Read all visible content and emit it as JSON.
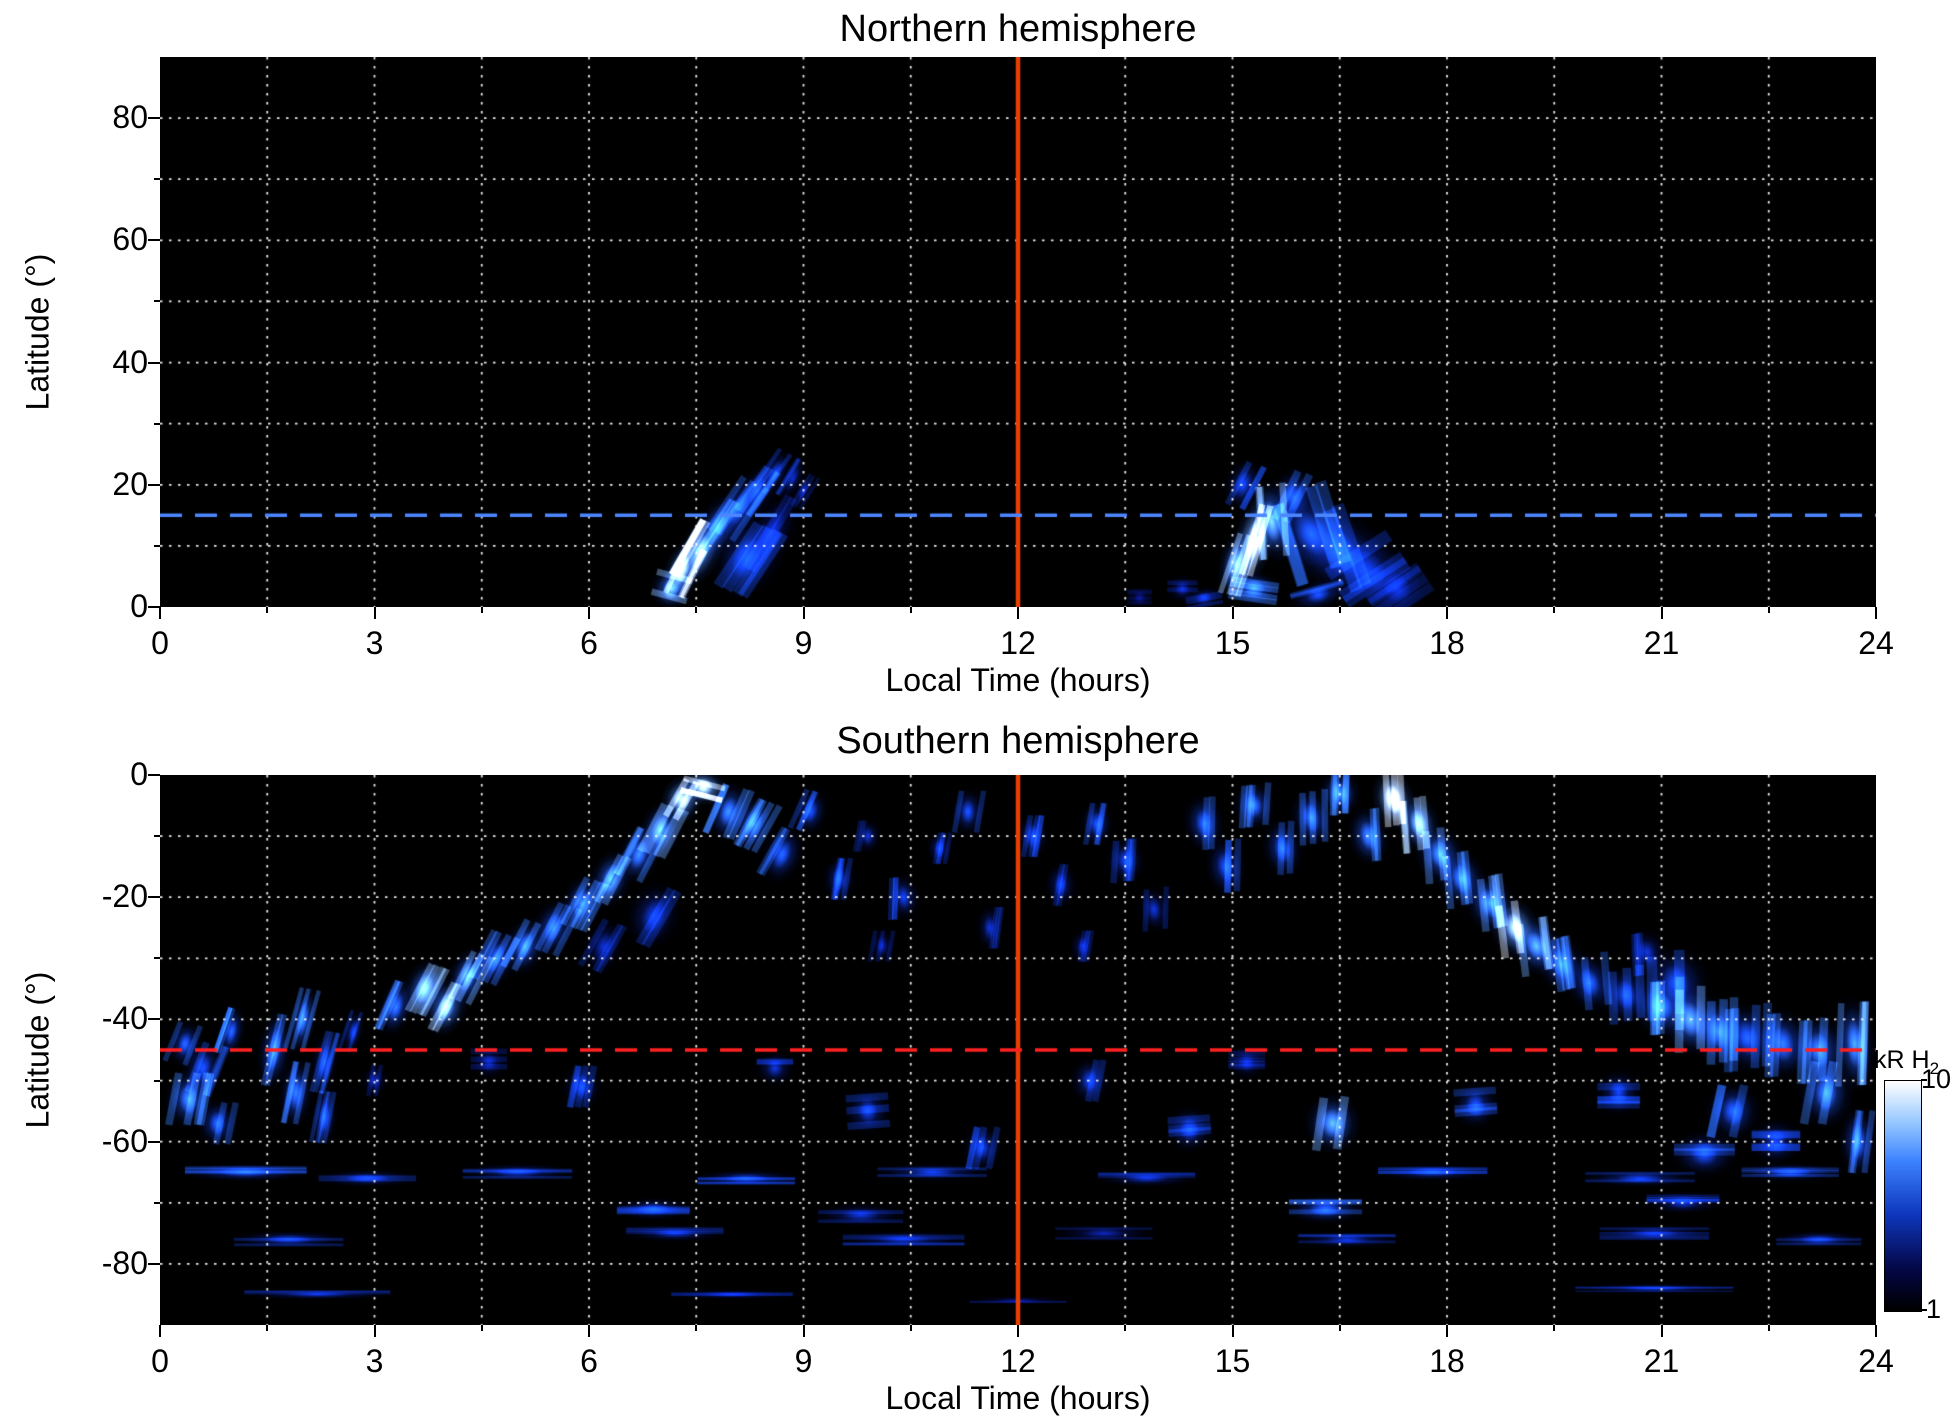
{
  "page": {
    "background": "#ffffff"
  },
  "colorbar": {
    "label_main": "kR H",
    "label_sub": "2",
    "tick_top": "10",
    "tick_bottom": "1",
    "scale": "log",
    "range": [
      1,
      10
    ]
  },
  "chart_data": [
    {
      "id": "north",
      "type": "heatmap",
      "title": "Northern hemisphere",
      "xlabel": "Local Time (hours)",
      "ylabel": "Latitude (°)",
      "xlim": [
        0,
        24
      ],
      "ylim": [
        0,
        90
      ],
      "xticks": [
        0,
        3,
        6,
        9,
        12,
        15,
        18,
        21,
        24
      ],
      "yticks": [
        0,
        20,
        40,
        60,
        80
      ],
      "x_grid_step": 1.5,
      "y_grid_step": 10,
      "grid_color": "#ffffff",
      "grid_style": "dotted",
      "bg_color": "#000000",
      "noon_line": {
        "x": 12,
        "color": "#e84000"
      },
      "ref_line": {
        "y": 15,
        "color": "#4d86ff",
        "style": "dashed"
      },
      "value_units": "kR H2",
      "value_range": [
        1,
        10
      ],
      "value_scale": "log",
      "features_format": [
        "x_hours",
        "y_lat_deg",
        "halfwidth_hours",
        "halfheight_deg",
        "tilt_deg",
        "intensity_0to1"
      ],
      "features": [
        [
          7.15,
          3,
          0.3,
          3.5,
          15,
          0.75
        ],
        [
          7.3,
          6,
          0.25,
          5,
          18,
          0.95
        ],
        [
          7.55,
          9,
          0.3,
          6,
          22,
          0.85
        ],
        [
          7.8,
          13,
          0.3,
          6,
          25,
          0.6
        ],
        [
          8.1,
          16,
          0.3,
          6,
          26,
          0.5
        ],
        [
          8.35,
          19,
          0.25,
          5,
          27,
          0.45
        ],
        [
          8.6,
          22,
          0.2,
          4.5,
          28,
          0.4
        ],
        [
          8.85,
          21,
          0.16,
          4,
          25,
          0.33
        ],
        [
          8.2,
          8,
          0.5,
          7,
          22,
          0.42
        ],
        [
          8.55,
          12,
          0.35,
          8,
          24,
          0.3
        ],
        [
          9.0,
          19,
          0.14,
          3.5,
          25,
          0.3
        ],
        [
          13.7,
          1.5,
          0.2,
          2,
          0,
          0.22
        ],
        [
          14.3,
          3,
          0.25,
          2.5,
          0,
          0.3
        ],
        [
          14.6,
          1.5,
          0.3,
          2,
          -10,
          0.35
        ],
        [
          15.05,
          7,
          0.25,
          6,
          12,
          0.8
        ],
        [
          15.3,
          11,
          0.28,
          7,
          10,
          0.95
        ],
        [
          15.55,
          14,
          0.3,
          7,
          -10,
          0.75
        ],
        [
          15.3,
          3,
          0.4,
          3,
          8,
          0.6
        ],
        [
          15.85,
          18,
          0.35,
          5,
          15,
          0.5
        ],
        [
          15.15,
          20,
          0.28,
          4.5,
          18,
          0.42
        ],
        [
          16.1,
          12,
          0.55,
          8,
          -28,
          0.5
        ],
        [
          16.5,
          9,
          0.6,
          8,
          -31,
          0.42
        ],
        [
          16.9,
          6,
          0.6,
          7,
          -33,
          0.38
        ],
        [
          17.3,
          3,
          0.5,
          5,
          -34,
          0.32
        ],
        [
          16.2,
          2,
          0.45,
          2.5,
          -15,
          0.45
        ]
      ]
    },
    {
      "id": "south",
      "type": "heatmap",
      "title": "Southern hemisphere",
      "xlabel": "Local Time (hours)",
      "ylabel": "Latitude (°)",
      "xlim": [
        0,
        24
      ],
      "ylim": [
        -90,
        0
      ],
      "xticks": [
        0,
        3,
        6,
        9,
        12,
        15,
        18,
        21,
        24
      ],
      "yticks": [
        0,
        -20,
        -40,
        -60,
        -80
      ],
      "x_grid_step": 1.5,
      "y_grid_step": 10,
      "grid_color": "#ffffff",
      "grid_style": "dotted",
      "bg_color": "#000000",
      "noon_line": {
        "x": 12,
        "color": "#e84000"
      },
      "ref_line": {
        "y": -45,
        "color": "#ff2020",
        "style": "dashed"
      },
      "value_units": "kR H2",
      "value_range": [
        1,
        10
      ],
      "value_scale": "log",
      "features_format": [
        "x_hours",
        "y_lat_deg",
        "halfwidth_hours",
        "halfheight_deg",
        "tilt_deg",
        "intensity_0to1"
      ],
      "features": [
        [
          0.35,
          -44,
          0.25,
          4,
          12,
          0.5
        ],
        [
          0.6,
          -48,
          0.3,
          5,
          12,
          0.45
        ],
        [
          1.0,
          -42,
          0.2,
          4.5,
          12,
          0.5
        ],
        [
          1.6,
          -45,
          0.25,
          7,
          8,
          0.55
        ],
        [
          2.0,
          -40,
          0.2,
          6,
          10,
          0.6
        ],
        [
          2.3,
          -47,
          0.2,
          6,
          10,
          0.45
        ],
        [
          2.7,
          -42,
          0.16,
          4,
          12,
          0.4
        ],
        [
          3.3,
          -38,
          0.25,
          5,
          16,
          0.55
        ],
        [
          3.7,
          -35,
          0.3,
          5,
          18,
          0.75
        ],
        [
          4.0,
          -38,
          0.3,
          5,
          18,
          0.8
        ],
        [
          4.3,
          -33,
          0.28,
          5,
          18,
          0.7
        ],
        [
          4.7,
          -30,
          0.3,
          5,
          18,
          0.55
        ],
        [
          5.1,
          -28,
          0.3,
          5,
          18,
          0.6
        ],
        [
          5.5,
          -25,
          0.3,
          5,
          18,
          0.55
        ],
        [
          5.9,
          -21,
          0.3,
          5,
          18,
          0.6
        ],
        [
          6.3,
          -17,
          0.3,
          5,
          18,
          0.65
        ],
        [
          6.7,
          -13,
          0.3,
          5,
          18,
          0.6
        ],
        [
          7.0,
          -9,
          0.3,
          5,
          18,
          0.7
        ],
        [
          7.3,
          -4,
          0.3,
          4,
          18,
          0.9
        ],
        [
          7.6,
          -2,
          0.35,
          3,
          14,
          0.95
        ],
        [
          7.95,
          -6,
          0.3,
          5,
          14,
          0.6
        ],
        [
          6.9,
          -23,
          0.4,
          6,
          20,
          0.38
        ],
        [
          6.2,
          -28,
          0.3,
          5,
          20,
          0.33
        ],
        [
          8.3,
          -8,
          0.3,
          5,
          20,
          0.6
        ],
        [
          8.7,
          -13,
          0.3,
          5,
          20,
          0.5
        ],
        [
          9.1,
          -6,
          0.25,
          4,
          14,
          0.45
        ],
        [
          9.5,
          -17,
          0.25,
          4,
          0,
          0.4
        ],
        [
          9.9,
          -10,
          0.2,
          3,
          0,
          0.35
        ],
        [
          10.4,
          -20,
          0.25,
          4,
          -8,
          0.4
        ],
        [
          10.9,
          -12,
          0.2,
          3,
          0,
          0.35
        ],
        [
          11.3,
          -6,
          0.25,
          4,
          0,
          0.45
        ],
        [
          11.6,
          -25,
          0.2,
          4,
          0,
          0.35
        ],
        [
          12.2,
          -10,
          0.25,
          4,
          0,
          0.4
        ],
        [
          12.6,
          -18,
          0.25,
          4,
          0,
          0.35
        ],
        [
          13.1,
          -8,
          0.25,
          4,
          0,
          0.45
        ],
        [
          13.5,
          -14,
          0.3,
          4,
          -8,
          0.4
        ],
        [
          13.9,
          -22,
          0.25,
          4,
          -8,
          0.35
        ],
        [
          10.1,
          -28,
          0.2,
          3,
          0,
          0.3
        ],
        [
          12.9,
          -28,
          0.2,
          3,
          0,
          0.3
        ],
        [
          14.6,
          -8,
          0.3,
          5,
          -8,
          0.5
        ],
        [
          14.9,
          -15,
          0.3,
          5,
          -8,
          0.45
        ],
        [
          15.3,
          -5,
          0.3,
          4,
          -8,
          0.55
        ],
        [
          15.7,
          -12,
          0.3,
          5,
          -8,
          0.5
        ],
        [
          16.1,
          -7,
          0.3,
          5,
          -10,
          0.55
        ],
        [
          16.5,
          -3,
          0.3,
          4,
          -10,
          0.6
        ],
        [
          16.9,
          -10,
          0.3,
          5,
          -12,
          0.6
        ],
        [
          17.25,
          -4,
          0.3,
          5,
          -12,
          1.0
        ],
        [
          17.6,
          -8,
          0.3,
          5,
          -14,
          0.8
        ],
        [
          17.9,
          -13,
          0.35,
          5,
          -15,
          0.65
        ],
        [
          18.2,
          -17,
          0.35,
          5,
          -16,
          0.6
        ],
        [
          18.6,
          -21,
          0.35,
          5,
          -17,
          0.65
        ],
        [
          18.95,
          -25,
          0.35,
          5,
          -18,
          0.9
        ],
        [
          19.25,
          -28,
          0.35,
          5,
          -18,
          0.7
        ],
        [
          19.6,
          -31,
          0.35,
          5,
          -18,
          0.55
        ],
        [
          20.0,
          -34,
          0.35,
          5,
          -16,
          0.5
        ],
        [
          20.5,
          -36,
          0.4,
          5,
          -14,
          0.45
        ],
        [
          21.0,
          -38,
          0.4,
          5,
          -12,
          0.6
        ],
        [
          21.4,
          -40,
          0.4,
          6,
          -10,
          0.7
        ],
        [
          21.8,
          -42,
          0.4,
          6,
          -10,
          0.6
        ],
        [
          22.2,
          -43,
          0.4,
          6,
          -9,
          0.5
        ],
        [
          22.7,
          -44,
          0.4,
          6,
          -8,
          0.55
        ],
        [
          23.2,
          -45,
          0.4,
          6,
          -8,
          0.6
        ],
        [
          23.7,
          -44,
          0.3,
          8,
          -4,
          0.65
        ],
        [
          21.2,
          -34,
          0.5,
          6,
          -14,
          0.45
        ],
        [
          20.8,
          -29,
          0.3,
          4,
          -14,
          0.35
        ],
        [
          0.4,
          -53,
          0.35,
          5,
          0,
          0.6
        ],
        [
          0.8,
          -57,
          0.3,
          4,
          0,
          0.5
        ],
        [
          1.9,
          -52,
          0.25,
          6,
          5,
          0.55
        ],
        [
          2.3,
          -56,
          0.2,
          5,
          5,
          0.45
        ],
        [
          3.0,
          -50,
          0.2,
          3,
          0,
          0.3
        ],
        [
          4.6,
          -47,
          0.3,
          3,
          0,
          0.3
        ],
        [
          5.9,
          -51,
          0.3,
          4,
          0,
          0.4
        ],
        [
          8.6,
          -48,
          0.3,
          3,
          0,
          0.35
        ],
        [
          9.9,
          -55,
          0.35,
          4,
          -4,
          0.4
        ],
        [
          11.5,
          -61,
          0.3,
          4,
          0,
          0.4
        ],
        [
          13.0,
          -50,
          0.3,
          4,
          0,
          0.4
        ],
        [
          14.4,
          -58,
          0.35,
          4,
          -4,
          0.4
        ],
        [
          15.2,
          -47,
          0.3,
          3,
          0,
          0.3
        ],
        [
          16.4,
          -57,
          0.4,
          5,
          -4,
          0.7
        ],
        [
          18.4,
          -54,
          0.35,
          4,
          -4,
          0.45
        ],
        [
          20.4,
          -52,
          0.35,
          4,
          0,
          0.4
        ],
        [
          21.6,
          -62,
          0.5,
          4,
          0,
          0.45
        ],
        [
          22.0,
          -55,
          0.4,
          5,
          0,
          0.5
        ],
        [
          22.6,
          -60,
          0.4,
          4,
          0,
          0.4
        ],
        [
          23.3,
          -52,
          0.4,
          6,
          0,
          0.6
        ],
        [
          23.75,
          -60,
          0.28,
          6,
          0,
          0.55
        ],
        [
          1.2,
          -65,
          1.0,
          1.6,
          0,
          0.45
        ],
        [
          2.9,
          -66,
          0.8,
          1.5,
          0,
          0.4
        ],
        [
          5.0,
          -65,
          0.9,
          1.5,
          0,
          0.4
        ],
        [
          8.2,
          -66,
          0.8,
          1.5,
          0,
          0.4
        ],
        [
          10.8,
          -65,
          0.9,
          1.5,
          0,
          0.4
        ],
        [
          13.8,
          -66,
          0.8,
          1.5,
          0,
          0.35
        ],
        [
          17.8,
          -65,
          0.9,
          1.5,
          0,
          0.4
        ],
        [
          20.7,
          -66,
          0.9,
          1.5,
          0,
          0.4
        ],
        [
          22.8,
          -65,
          0.8,
          1.6,
          0,
          0.45
        ],
        [
          6.9,
          -71,
          0.6,
          2,
          0,
          0.4
        ],
        [
          9.8,
          -72,
          0.7,
          2,
          0,
          0.35
        ],
        [
          16.3,
          -71,
          0.6,
          2.5,
          0,
          0.5
        ],
        [
          21.3,
          -70,
          0.6,
          2,
          0,
          0.35
        ],
        [
          1.8,
          -76,
          0.9,
          1.5,
          0,
          0.4
        ],
        [
          7.2,
          -75,
          0.8,
          1.5,
          0,
          0.35
        ],
        [
          10.4,
          -76,
          1.0,
          1.5,
          0,
          0.35
        ],
        [
          13.2,
          -75,
          0.8,
          1.5,
          0,
          0.3
        ],
        [
          16.6,
          -76,
          0.8,
          1.5,
          0,
          0.35
        ],
        [
          20.9,
          -75,
          0.9,
          1.5,
          0,
          0.35
        ],
        [
          23.2,
          -76,
          0.7,
          1.5,
          0,
          0.4
        ],
        [
          2.2,
          -85,
          1.2,
          0.9,
          0,
          0.35
        ],
        [
          8.0,
          -85,
          1.0,
          0.9,
          0,
          0.3
        ],
        [
          12.0,
          -86,
          0.8,
          0.8,
          0,
          0.25
        ],
        [
          20.9,
          -84,
          1.3,
          0.9,
          0,
          0.35
        ]
      ]
    }
  ]
}
